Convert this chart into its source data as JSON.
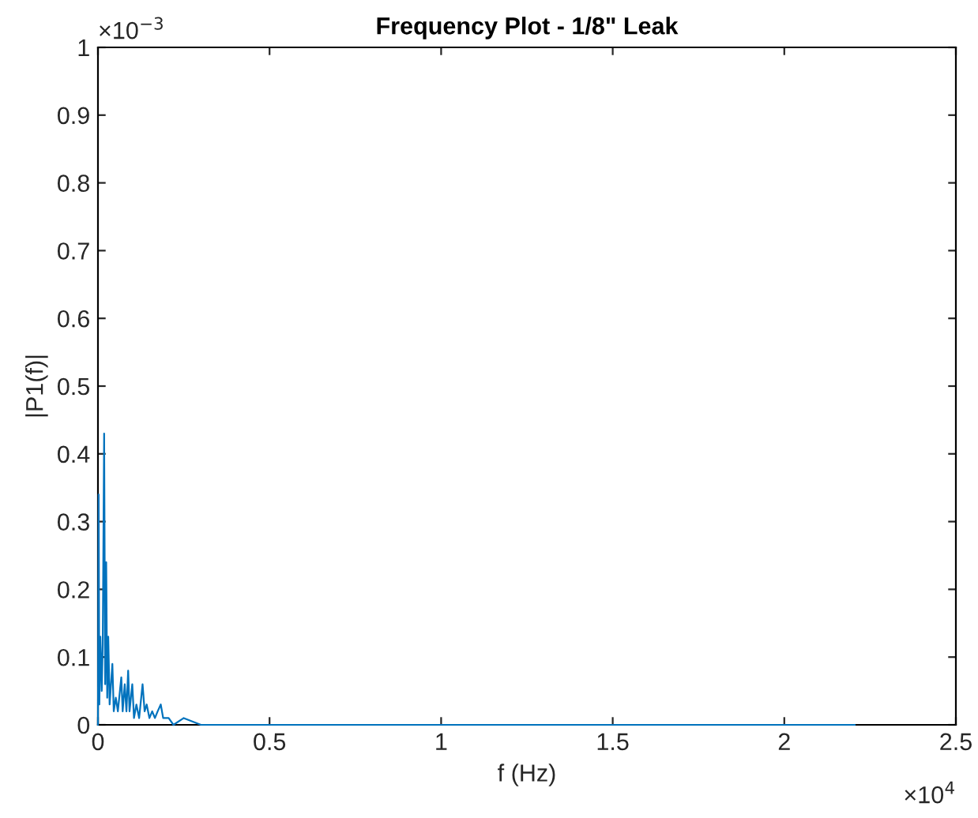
{
  "chart_data": {
    "type": "line",
    "title": "Frequency Plot - 1/8\" Leak",
    "xlabel": "f (Hz)",
    "ylabel": "|P1(f)|",
    "annotations": [
      "×10$^{−3}$",
      "×10$^{4}$"
    ],
    "xlim": [
      0,
      2.5
    ],
    "ylim": [
      0,
      1
    ],
    "xticks": [
      0,
      0.5,
      1,
      1.5,
      2,
      2.5
    ],
    "yticks": [
      0,
      0.1,
      0.2,
      0.3,
      0.4,
      0.5,
      0.6,
      0.7,
      0.8,
      0.9,
      1
    ],
    "grid": false,
    "series": [
      {
        "color": "#0072bd",
        "x": [
          0,
          0.002,
          0.004,
          0.007,
          0.011,
          0.014,
          0.018,
          0.021,
          0.024,
          0.027,
          0.03,
          0.034,
          0.038,
          0.042,
          0.046,
          0.052,
          0.058,
          0.064,
          0.068,
          0.072,
          0.078,
          0.083,
          0.088,
          0.092,
          0.096,
          0.1,
          0.105,
          0.112,
          0.12,
          0.126,
          0.13,
          0.136,
          0.142,
          0.15,
          0.158,
          0.166,
          0.174,
          0.183,
          0.19,
          0.198,
          0.206,
          0.22,
          0.25,
          0.3,
          0.4,
          0.6,
          0.8,
          1,
          1.3,
          1.6,
          1.9,
          2.205
        ],
        "values": [
          0,
          0.34,
          0.03,
          0.13,
          0.05,
          0.12,
          0.43,
          0.06,
          0.24,
          0.04,
          0.13,
          0.03,
          0.06,
          0.09,
          0.02,
          0.04,
          0.02,
          0.05,
          0.07,
          0.02,
          0.06,
          0.02,
          0.08,
          0.02,
          0.04,
          0.06,
          0.01,
          0.03,
          0.01,
          0.04,
          0.06,
          0.02,
          0.03,
          0.01,
          0.02,
          0.01,
          0.02,
          0.03,
          0.01,
          0.01,
          0.01,
          0,
          0.01,
          0,
          0,
          0,
          0,
          0,
          0,
          0,
          0,
          0
        ]
      }
    ]
  }
}
